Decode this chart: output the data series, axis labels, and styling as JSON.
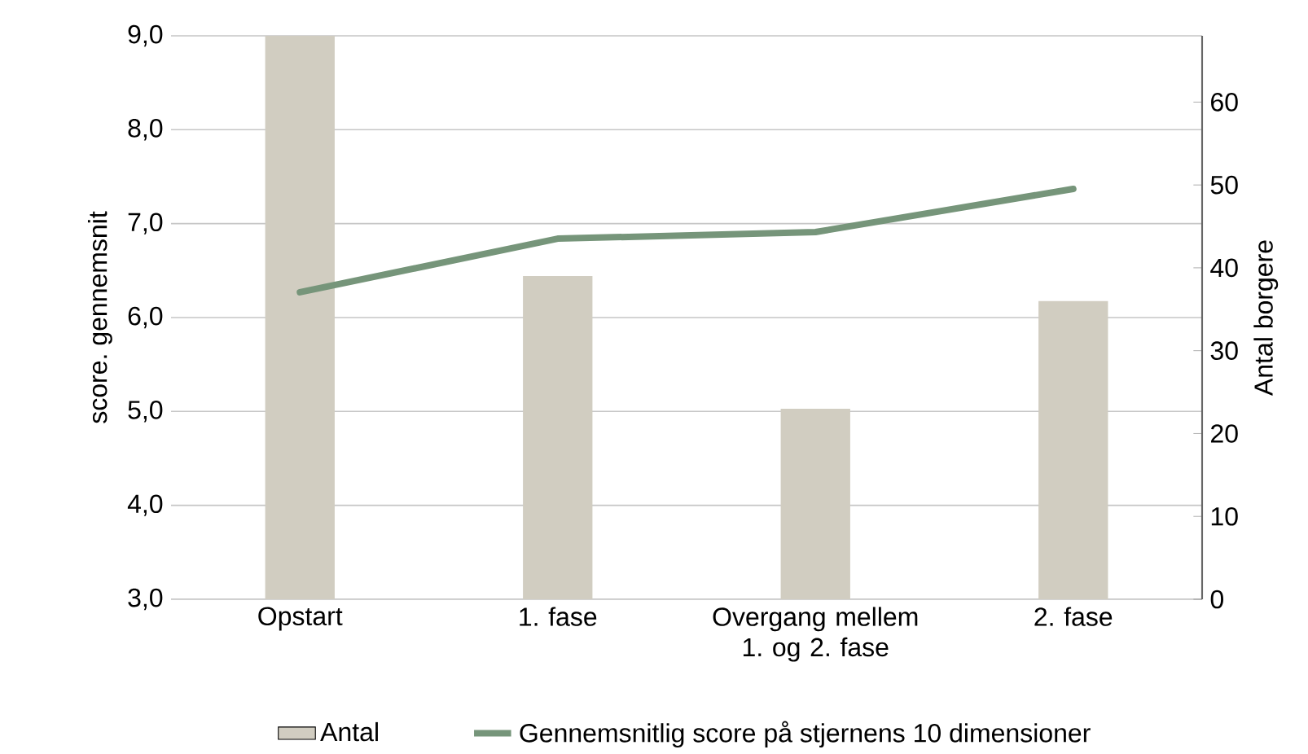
{
  "chart_data": {
    "type": "bar",
    "ylabel": "score. gennemsnit",
    "y2label": "Antal borgere",
    "categories": [
      "Opstart",
      "1. fase",
      "Overgang mellem 1. og 2. fase",
      "2. fase"
    ],
    "series": [
      {
        "name": "Antal",
        "axis": "y2",
        "color": "#d1cdc1",
        "values": [
          68,
          39,
          23,
          36
        ]
      },
      {
        "name": "Gennemsnitlig score på stjernens 10 dimensioner",
        "type": "line",
        "color": "#76957a",
        "values": [
          6.27,
          6.84,
          6.91,
          7.37
        ]
      }
    ],
    "ylim": [
      3,
      9
    ],
    "yticks": [
      {
        "value": 3,
        "label": "3,0"
      },
      {
        "value": 4,
        "label": "4,0"
      },
      {
        "value": 5,
        "label": "5,0"
      },
      {
        "value": 6,
        "label": "6,0"
      },
      {
        "value": 7,
        "label": "7,0"
      },
      {
        "value": 8,
        "label": "8,0"
      },
      {
        "value": 9,
        "label": "9,0"
      }
    ],
    "y2lim": [
      0,
      68
    ],
    "y2ticks": [
      0,
      10,
      20,
      30,
      40,
      50,
      60
    ],
    "grid": "y",
    "legend": "bottom",
    "marker": "none"
  }
}
